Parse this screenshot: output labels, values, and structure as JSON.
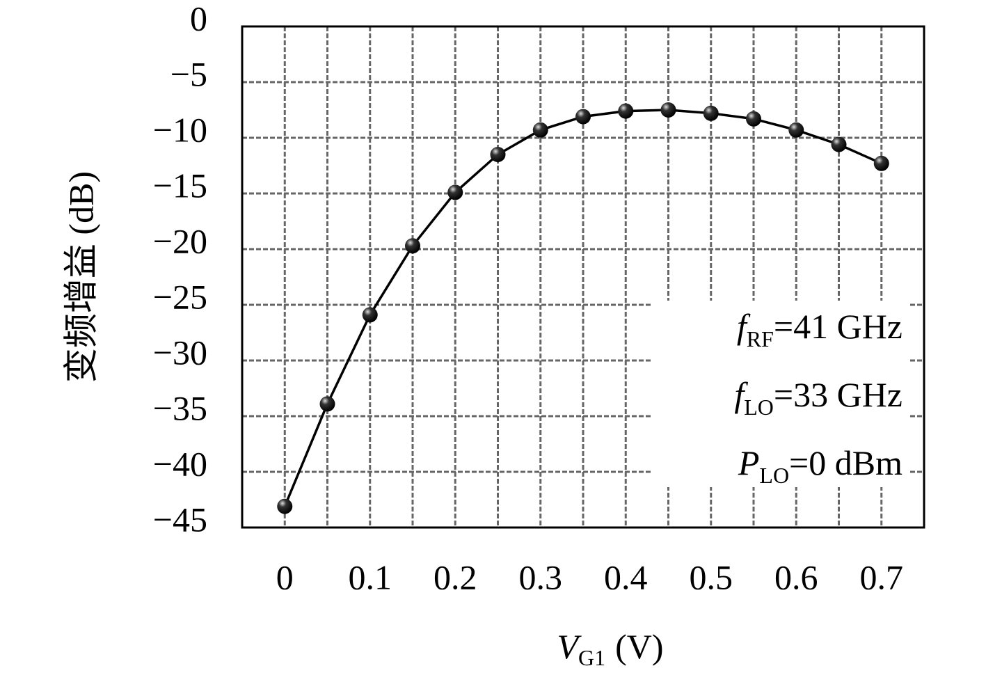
{
  "chart_data": {
    "type": "line",
    "y_label": "变频增益 (dB)",
    "x_label": {
      "symbol": "V",
      "sub": "G1",
      "unit": "(V)"
    },
    "x": [
      0,
      0.05,
      0.1,
      0.15,
      0.2,
      0.25,
      0.3,
      0.35,
      0.4,
      0.45,
      0.5,
      0.55,
      0.6,
      0.65,
      0.7
    ],
    "series": [
      {
        "color": "#000000",
        "values": [
          -43.1,
          -33.9,
          -25.9,
          -19.7,
          -14.9,
          -11.5,
          -9.3,
          -8.1,
          -7.6,
          -7.5,
          -7.8,
          -8.3,
          -9.3,
          -10.6,
          -12.3
        ]
      }
    ],
    "xlim": [
      -0.05,
      0.75
    ],
    "xticks": [
      0,
      0.1,
      0.2,
      0.3,
      0.4,
      0.5,
      0.6,
      0.7
    ],
    "x_minor_grid": [
      0.05,
      0.15,
      0.25,
      0.35,
      0.45,
      0.55,
      0.65
    ],
    "ylim": [
      -45,
      0
    ],
    "yticks": [
      0,
      {
        "value": -5,
        "label": "−5"
      },
      {
        "value": -10,
        "label": "−10"
      },
      {
        "value": -15,
        "label": "−15"
      },
      {
        "value": -20,
        "label": "−20"
      },
      {
        "value": -25,
        "label": "−25"
      },
      {
        "value": -30,
        "label": "−30"
      },
      {
        "value": -35,
        "label": "−35"
      },
      {
        "value": -40,
        "label": "−40"
      },
      {
        "value": -45,
        "label": "−45"
      }
    ],
    "grid": true,
    "annotations": [
      {
        "symbol": "f",
        "sub": "RF",
        "text": "=41 GHz"
      },
      {
        "symbol": "f",
        "sub": "LO",
        "text": "=33 GHz"
      },
      {
        "symbol": "P",
        "sub": "LO",
        "text": "=0 dBm"
      }
    ]
  }
}
